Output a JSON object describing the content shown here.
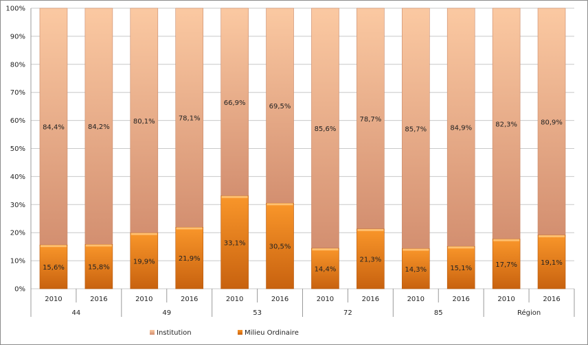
{
  "chart_data": {
    "type": "bar",
    "stacked": true,
    "percent": true,
    "groups": [
      "44",
      "49",
      "53",
      "72",
      "85",
      "Région"
    ],
    "categories": [
      "2010",
      "2016",
      "2010",
      "2016",
      "2010",
      "2016",
      "2010",
      "2016",
      "2010",
      "2016",
      "2010",
      "2016"
    ],
    "series": [
      {
        "name": "Milieu Ordinaire",
        "color": "#f08a24",
        "values": [
          15.6,
          15.8,
          19.9,
          21.9,
          33.1,
          30.5,
          14.4,
          21.3,
          14.3,
          15.1,
          17.7,
          19.1
        ],
        "labels": [
          "15,6%",
          "15,8%",
          "19,9%",
          "21,9%",
          "33,1%",
          "30,5%",
          "14,4%",
          "21,3%",
          "14,3%",
          "15,1%",
          "17,7%",
          "19,1%"
        ]
      },
      {
        "name": "Institution",
        "color": "#f4b48c",
        "values": [
          84.4,
          84.2,
          80.1,
          78.1,
          66.9,
          69.5,
          85.6,
          78.7,
          85.7,
          84.9,
          82.3,
          80.9
        ],
        "labels": [
          "84,4%",
          "84,2%",
          "80,1%",
          "78,1%",
          "66,9%",
          "69,5%",
          "85,6%",
          "78,7%",
          "85,7%",
          "84,9%",
          "82,3%",
          "80,9%"
        ]
      }
    ],
    "yticks": [
      "0%",
      "10%",
      "20%",
      "30%",
      "40%",
      "50%",
      "60%",
      "70%",
      "80%",
      "90%",
      "100%"
    ],
    "ylim": [
      0,
      100
    ],
    "grid": true,
    "legend": "bottom"
  }
}
